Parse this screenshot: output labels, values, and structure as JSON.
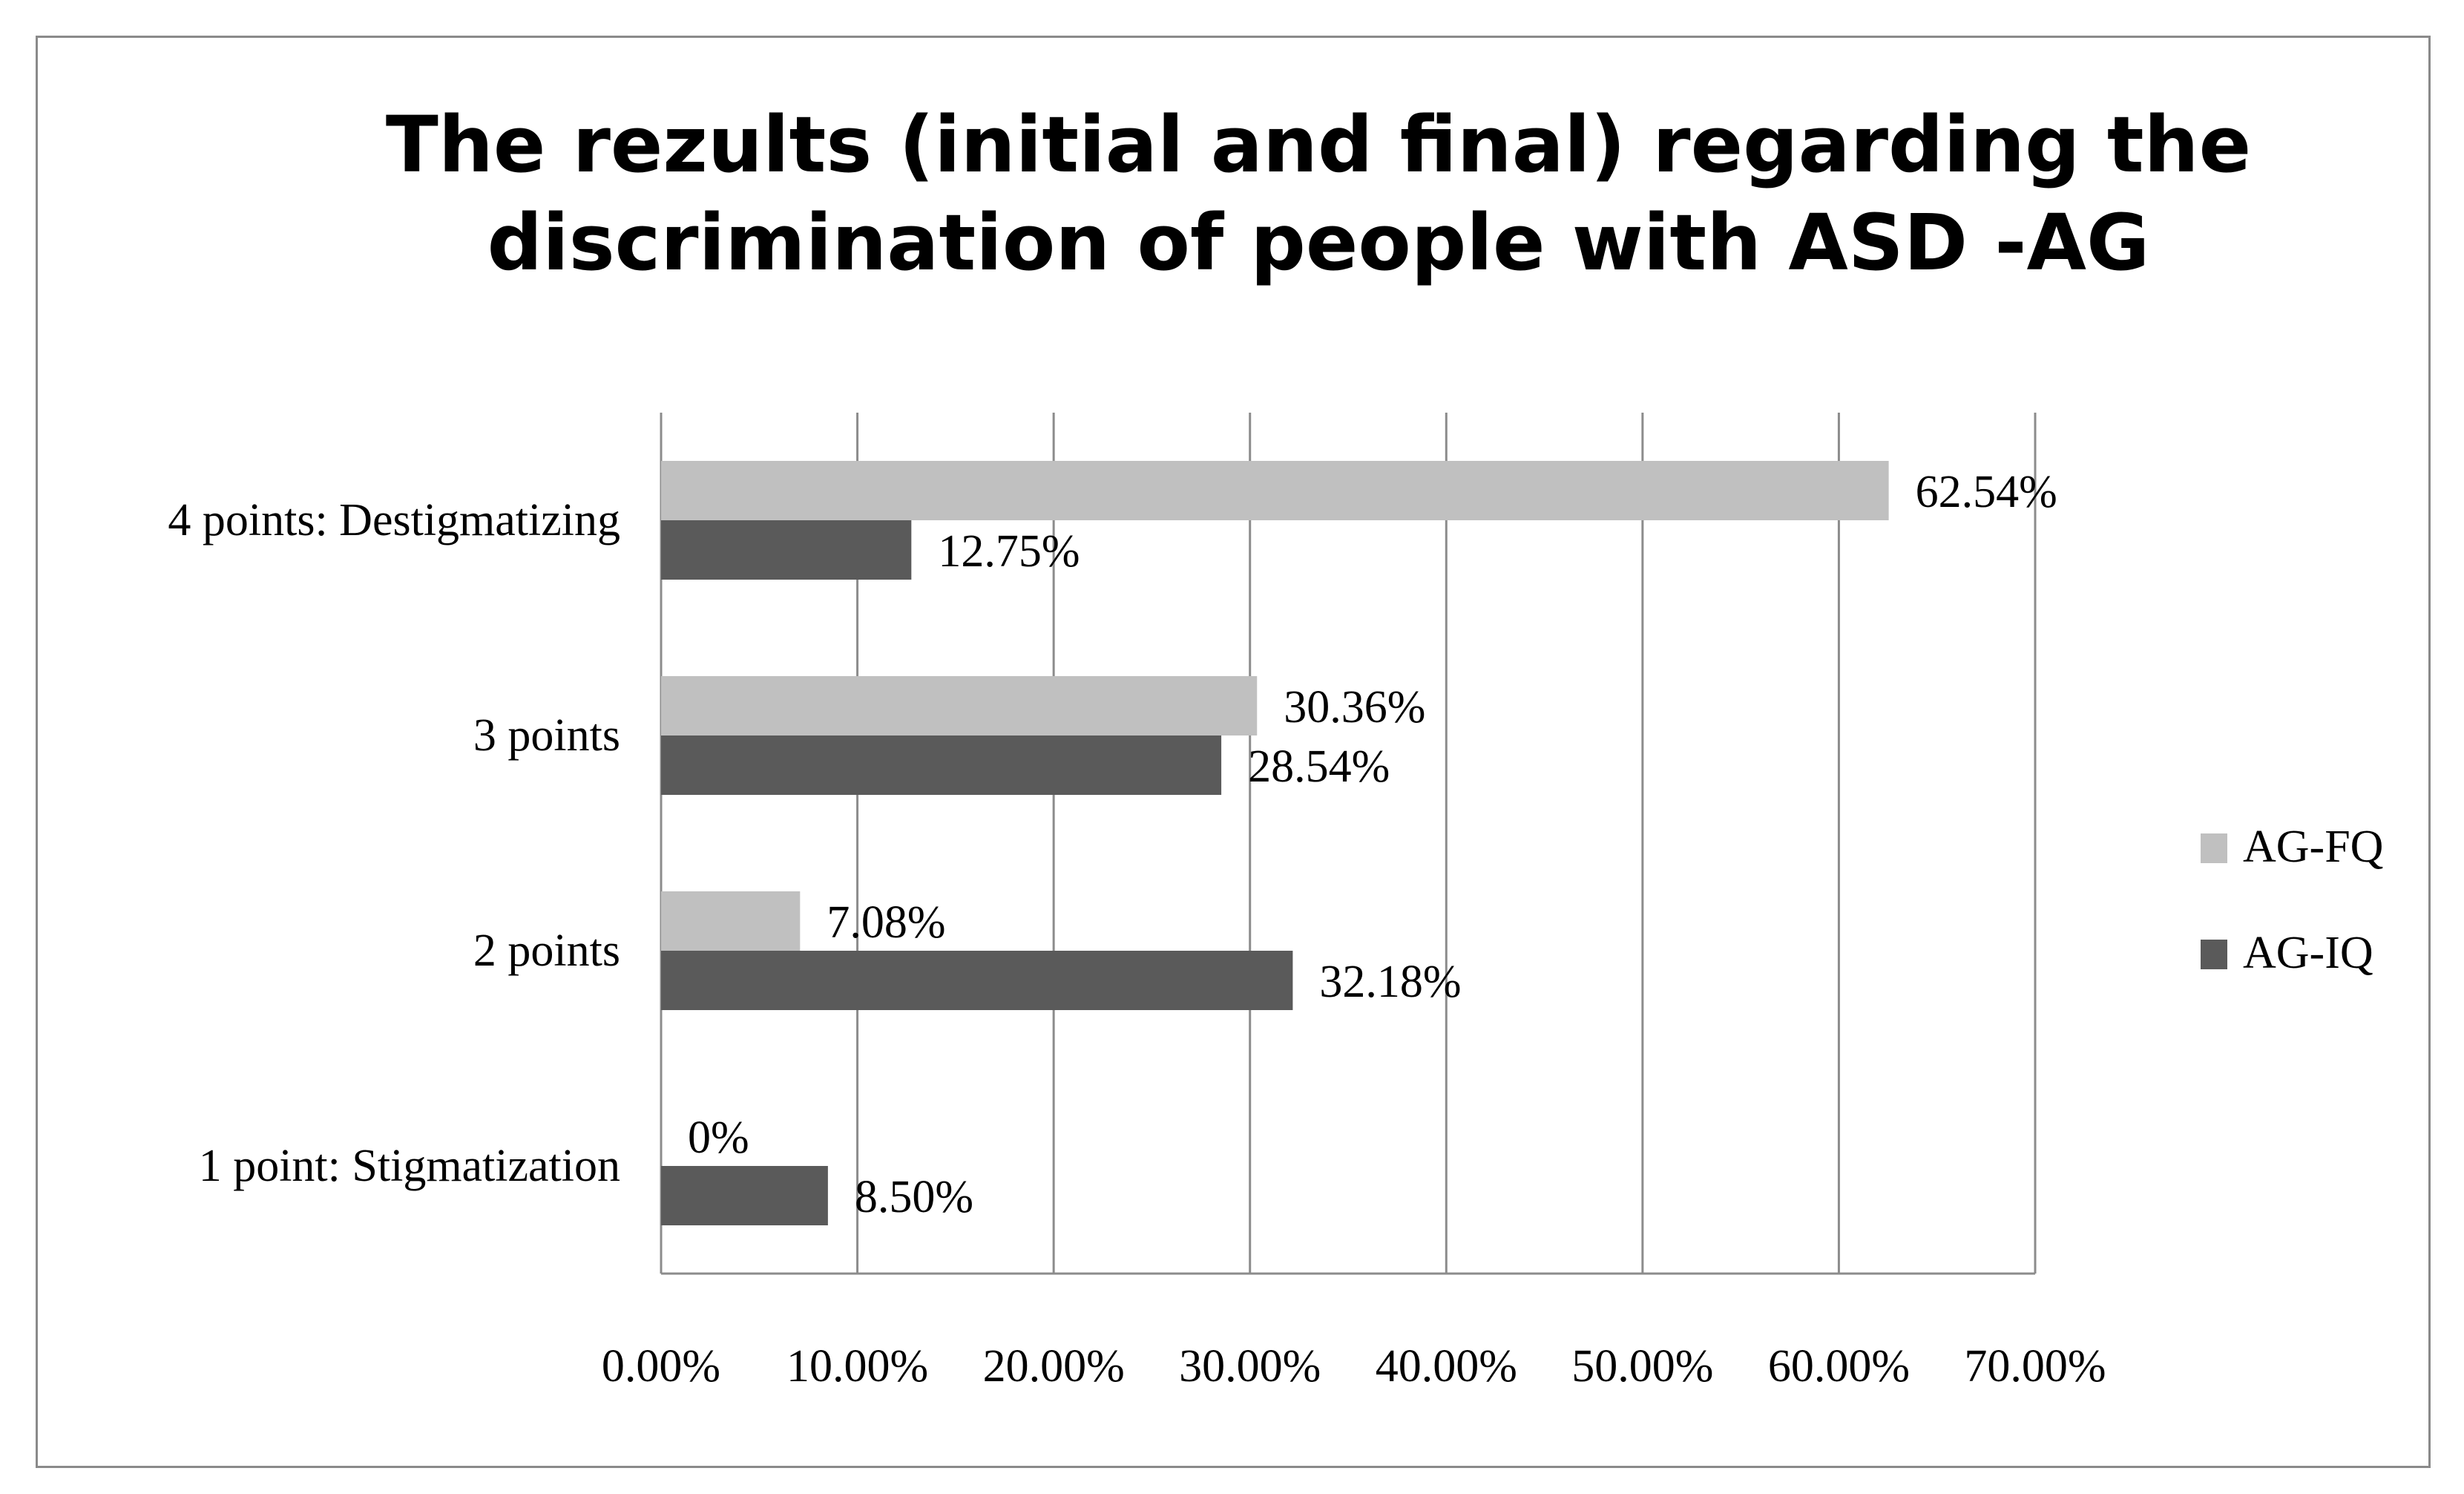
{
  "chart_data": {
    "type": "bar",
    "orientation": "horizontal",
    "title_lines": [
      "The rezults (initial and final) regarding the",
      "discrimination of people with ASD -AG"
    ],
    "categories": [
      "4 points: Destigmatizing",
      "3 points",
      "2 points",
      "1 point: Stigmatization"
    ],
    "series": [
      {
        "name": "AG-FQ",
        "color": "#c0c0c0",
        "values": [
          62.54,
          30.36,
          7.08,
          0
        ],
        "labels": [
          "62.54%",
          "30.36%",
          "7.08%",
          "0%"
        ]
      },
      {
        "name": "AG-IQ",
        "color": "#5a5a5a",
        "values": [
          12.75,
          28.54,
          32.18,
          8.5
        ],
        "labels": [
          "12.75%",
          "28.54%",
          "32.18%",
          "8.50%"
        ]
      }
    ],
    "x_ticks": [
      0,
      10,
      20,
      30,
      40,
      50,
      60,
      70
    ],
    "x_tick_labels": [
      "0.00%",
      "10.00%",
      "20.00%",
      "30.00%",
      "40.00%",
      "50.00%",
      "60.00%",
      "70.00%"
    ],
    "xlim": [
      0,
      70
    ],
    "xlabel": "",
    "ylabel": "",
    "grid": "vertical",
    "legend": "right"
  }
}
